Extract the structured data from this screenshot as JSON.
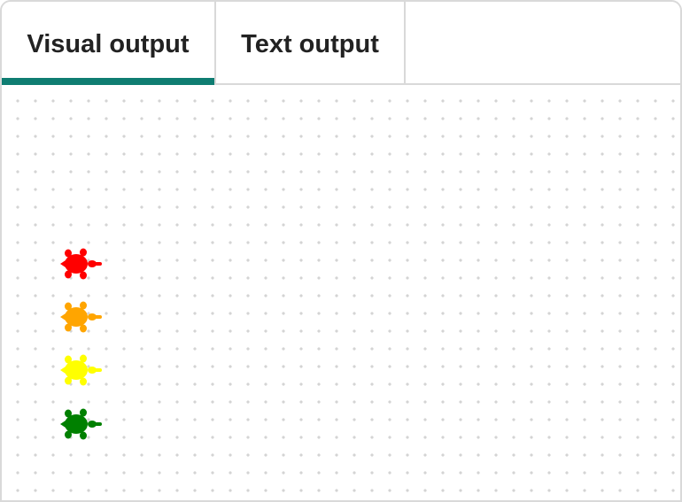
{
  "tabs": [
    {
      "label": "Visual output",
      "active": true
    },
    {
      "label": "Text output",
      "active": false
    }
  ],
  "accent_color": "#0f7d72",
  "turtles": [
    {
      "color": "#ff0000",
      "icon": "turtle-icon"
    },
    {
      "color": "#ffa500",
      "icon": "turtle-icon"
    },
    {
      "color": "#ffff00",
      "icon": "turtle-icon"
    },
    {
      "color": "#008000",
      "icon": "turtle-icon"
    }
  ]
}
